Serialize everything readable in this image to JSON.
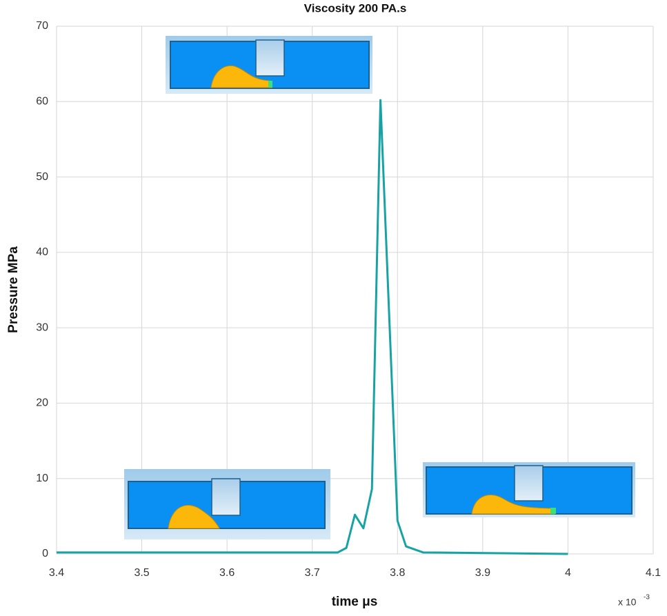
{
  "chart_data": {
    "type": "line",
    "title": "Viscosity 200 PA.s",
    "x_label": "time μs",
    "y_label": "Pressure MPa",
    "x_scale_note": {
      "base": "x 10",
      "exponent": "-3"
    },
    "x": [
      3.4,
      3.73,
      3.74,
      3.75,
      3.76,
      3.77,
      3.78,
      3.8,
      3.81,
      3.83,
      4.0
    ],
    "values": [
      0.2,
      0.2,
      0.8,
      5.2,
      3.4,
      8.6,
      60.2,
      4.4,
      1.0,
      0.2,
      0
    ],
    "color": "#17a2a4",
    "xlim": [
      3.4,
      4.1
    ],
    "xticks": [
      3.4,
      3.5,
      3.6,
      3.7,
      3.8,
      3.9,
      4,
      4.1
    ],
    "ylim": [
      0,
      70
    ],
    "yticks": [
      0,
      10,
      20,
      30,
      40,
      50,
      60,
      70
    ],
    "grid": true
  }
}
